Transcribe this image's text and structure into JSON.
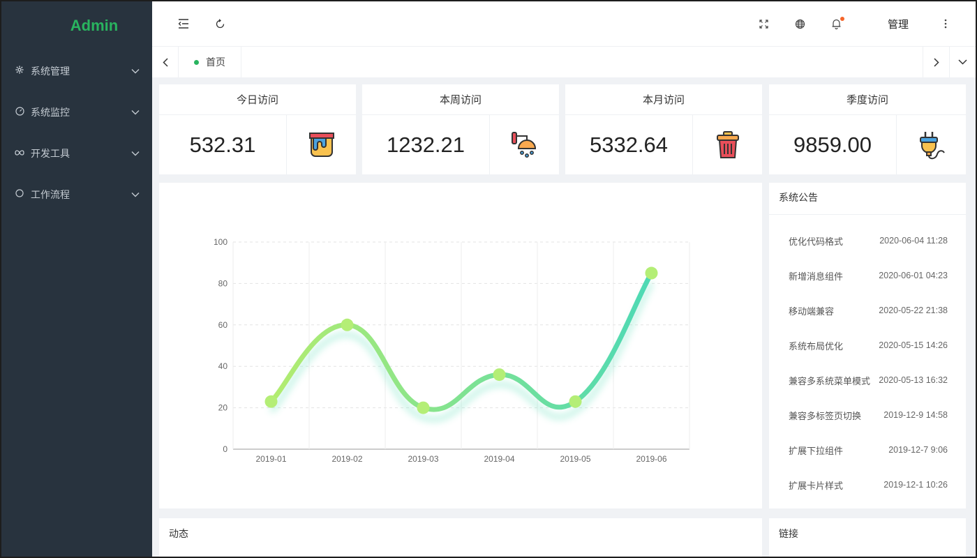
{
  "app": {
    "logo": "Admin"
  },
  "sidebar": {
    "items": [
      {
        "label": "系统管理",
        "icon": "gear-icon"
      },
      {
        "label": "系统监控",
        "icon": "dashboard-icon"
      },
      {
        "label": "开发工具",
        "icon": "infinity-icon"
      },
      {
        "label": "工作流程",
        "icon": "circle-icon"
      }
    ]
  },
  "header": {
    "user": "管理",
    "icons": [
      "menu-fold-icon",
      "refresh-icon",
      "fullscreen-icon",
      "globe-icon",
      "bell-icon",
      "more-icon"
    ],
    "notification_badge": true
  },
  "tabs": {
    "items": [
      {
        "label": "首页",
        "active": true
      }
    ]
  },
  "stats": [
    {
      "title": "今日访问",
      "value": "532.31",
      "icon": "paint-bucket-icon"
    },
    {
      "title": "本周访问",
      "value": "1232.21",
      "icon": "shower-icon"
    },
    {
      "title": "本月访问",
      "value": "5332.64",
      "icon": "trash-can-icon"
    },
    {
      "title": "季度访问",
      "value": "9859.00",
      "icon": "plug-icon"
    }
  ],
  "chart_data": {
    "type": "line",
    "smooth": true,
    "categories": [
      "2019-01",
      "2019-02",
      "2019-03",
      "2019-04",
      "2019-05",
      "2019-06"
    ],
    "series": [
      {
        "values": [
          23,
          60,
          20,
          36,
          23,
          85
        ]
      }
    ],
    "ylim": [
      0,
      100
    ],
    "yticks": [
      0,
      20,
      40,
      60,
      80,
      100
    ],
    "grid": true,
    "colors": {
      "start": "#b3ec6f",
      "end": "#4dd9b5",
      "point": "#b4ee76"
    }
  },
  "notices": {
    "title": "系统公告",
    "items": [
      {
        "text": "优化代码格式",
        "date": "2020-06-04 11:28"
      },
      {
        "text": "新增消息组件",
        "date": "2020-06-01 04:23"
      },
      {
        "text": "移动端兼容",
        "date": "2020-05-22 21:38"
      },
      {
        "text": "系统布局优化",
        "date": "2020-05-15 14:26"
      },
      {
        "text": "兼容多系统菜单模式",
        "date": "2020-05-13 16:32"
      },
      {
        "text": "兼容多标签页切换",
        "date": "2019-12-9 14:58"
      },
      {
        "text": "扩展下拉组件",
        "date": "2019-12-7 9:06"
      },
      {
        "text": "扩展卡片样式",
        "date": "2019-12-1 10:26"
      }
    ]
  },
  "bottom": {
    "activity_title": "动态",
    "links_title": "链接"
  }
}
